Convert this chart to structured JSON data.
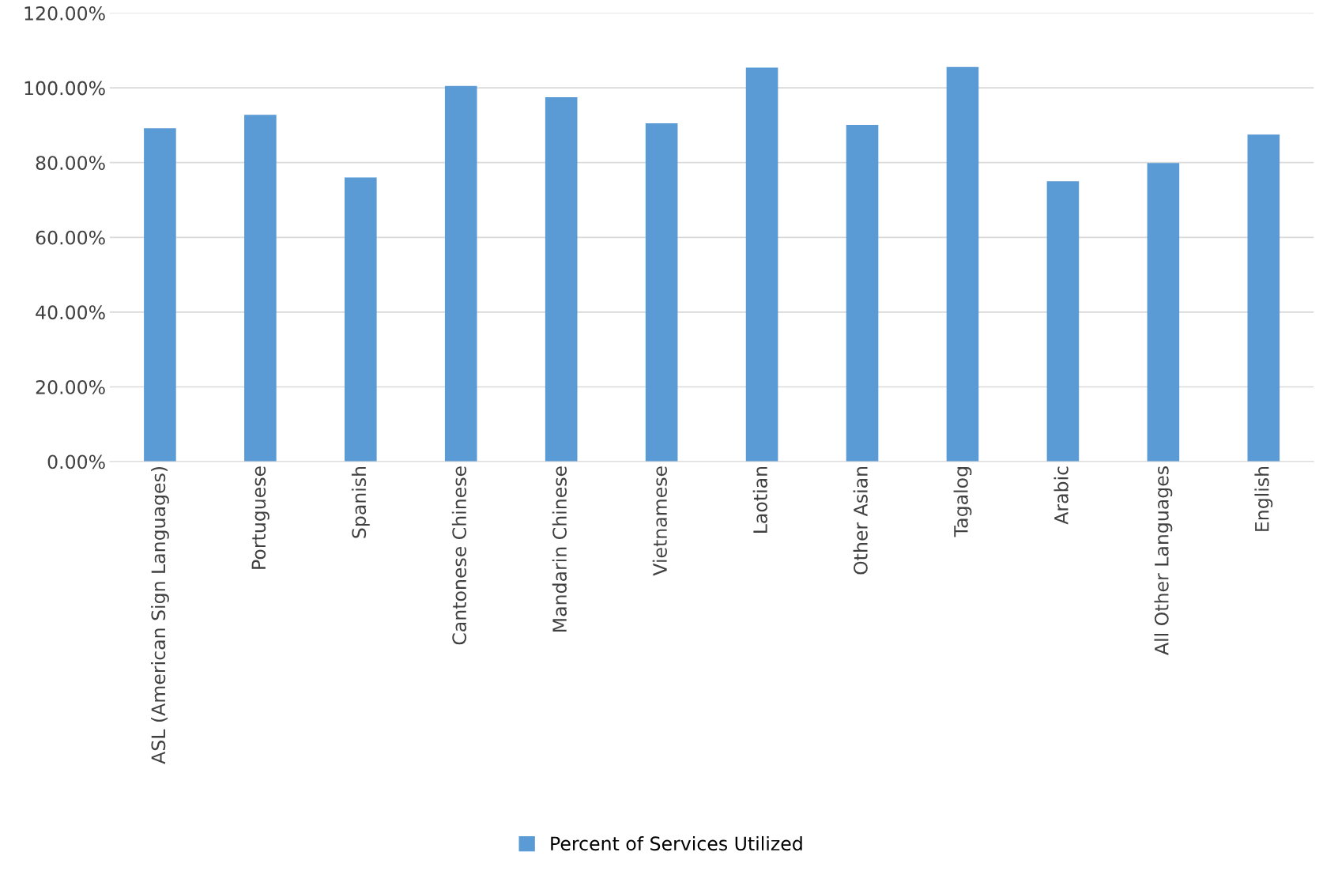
{
  "chart_data": {
    "type": "bar",
    "categories": [
      "ASL (American Sign Languages)",
      "Portuguese",
      "Spanish",
      "Cantonese Chinese",
      "Mandarin Chinese",
      "Vietnamese",
      "Laotian",
      "Other Asian",
      "Tagalog",
      "Arabic",
      "All Other Languages",
      "English"
    ],
    "series": [
      {
        "name": "Percent of Services Utilized",
        "color": "#5b9bd5",
        "values": [
          89.2,
          92.8,
          76.0,
          100.5,
          97.5,
          90.5,
          105.4,
          90.1,
          105.6,
          75.0,
          79.9,
          87.5
        ]
      }
    ],
    "ylim": [
      0,
      120
    ],
    "yticks": [
      {
        "value": 0,
        "label": "0.00%"
      },
      {
        "value": 20,
        "label": "20.00%"
      },
      {
        "value": 40,
        "label": "40.00%"
      },
      {
        "value": 60,
        "label": "60.00%"
      },
      {
        "value": 80,
        "label": "80.00%"
      },
      {
        "value": 100,
        "label": "100.00%"
      },
      {
        "value": 120,
        "label": "120.00%"
      }
    ],
    "grid": "y",
    "legend": "bottom"
  }
}
